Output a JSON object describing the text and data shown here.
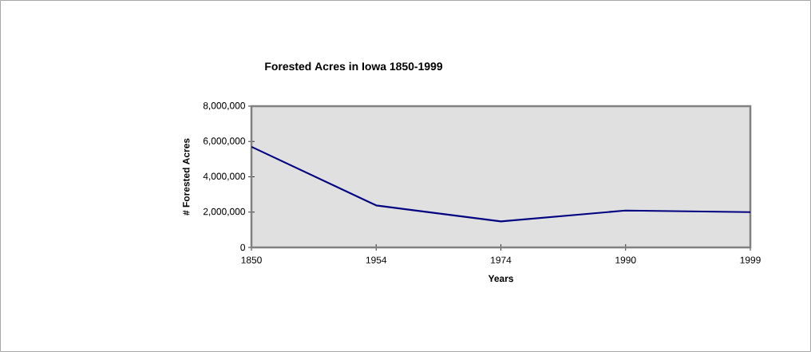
{
  "chart_data": {
    "type": "line",
    "title": "Forested Acres in Iowa 1850-1999",
    "xlabel": "Years",
    "ylabel": "# Forested Acres",
    "categories": [
      "1850",
      "1954",
      "1974",
      "1990",
      "1999"
    ],
    "series": [
      {
        "color": "#000080",
        "values": [
          5700000,
          2380000,
          1470000,
          2090000,
          2000000
        ]
      }
    ],
    "ylim": [
      0,
      8000000
    ],
    "yticks": [
      {
        "value": 0,
        "label": "0"
      },
      {
        "value": 2000000,
        "label": "2,000,000"
      },
      {
        "value": 4000000,
        "label": "4,000,000"
      },
      {
        "value": 6000000,
        "label": "6,000,000"
      },
      {
        "value": 8000000,
        "label": "8,000,000"
      }
    ],
    "grid": false,
    "marker": "none",
    "line_style": "solid"
  }
}
